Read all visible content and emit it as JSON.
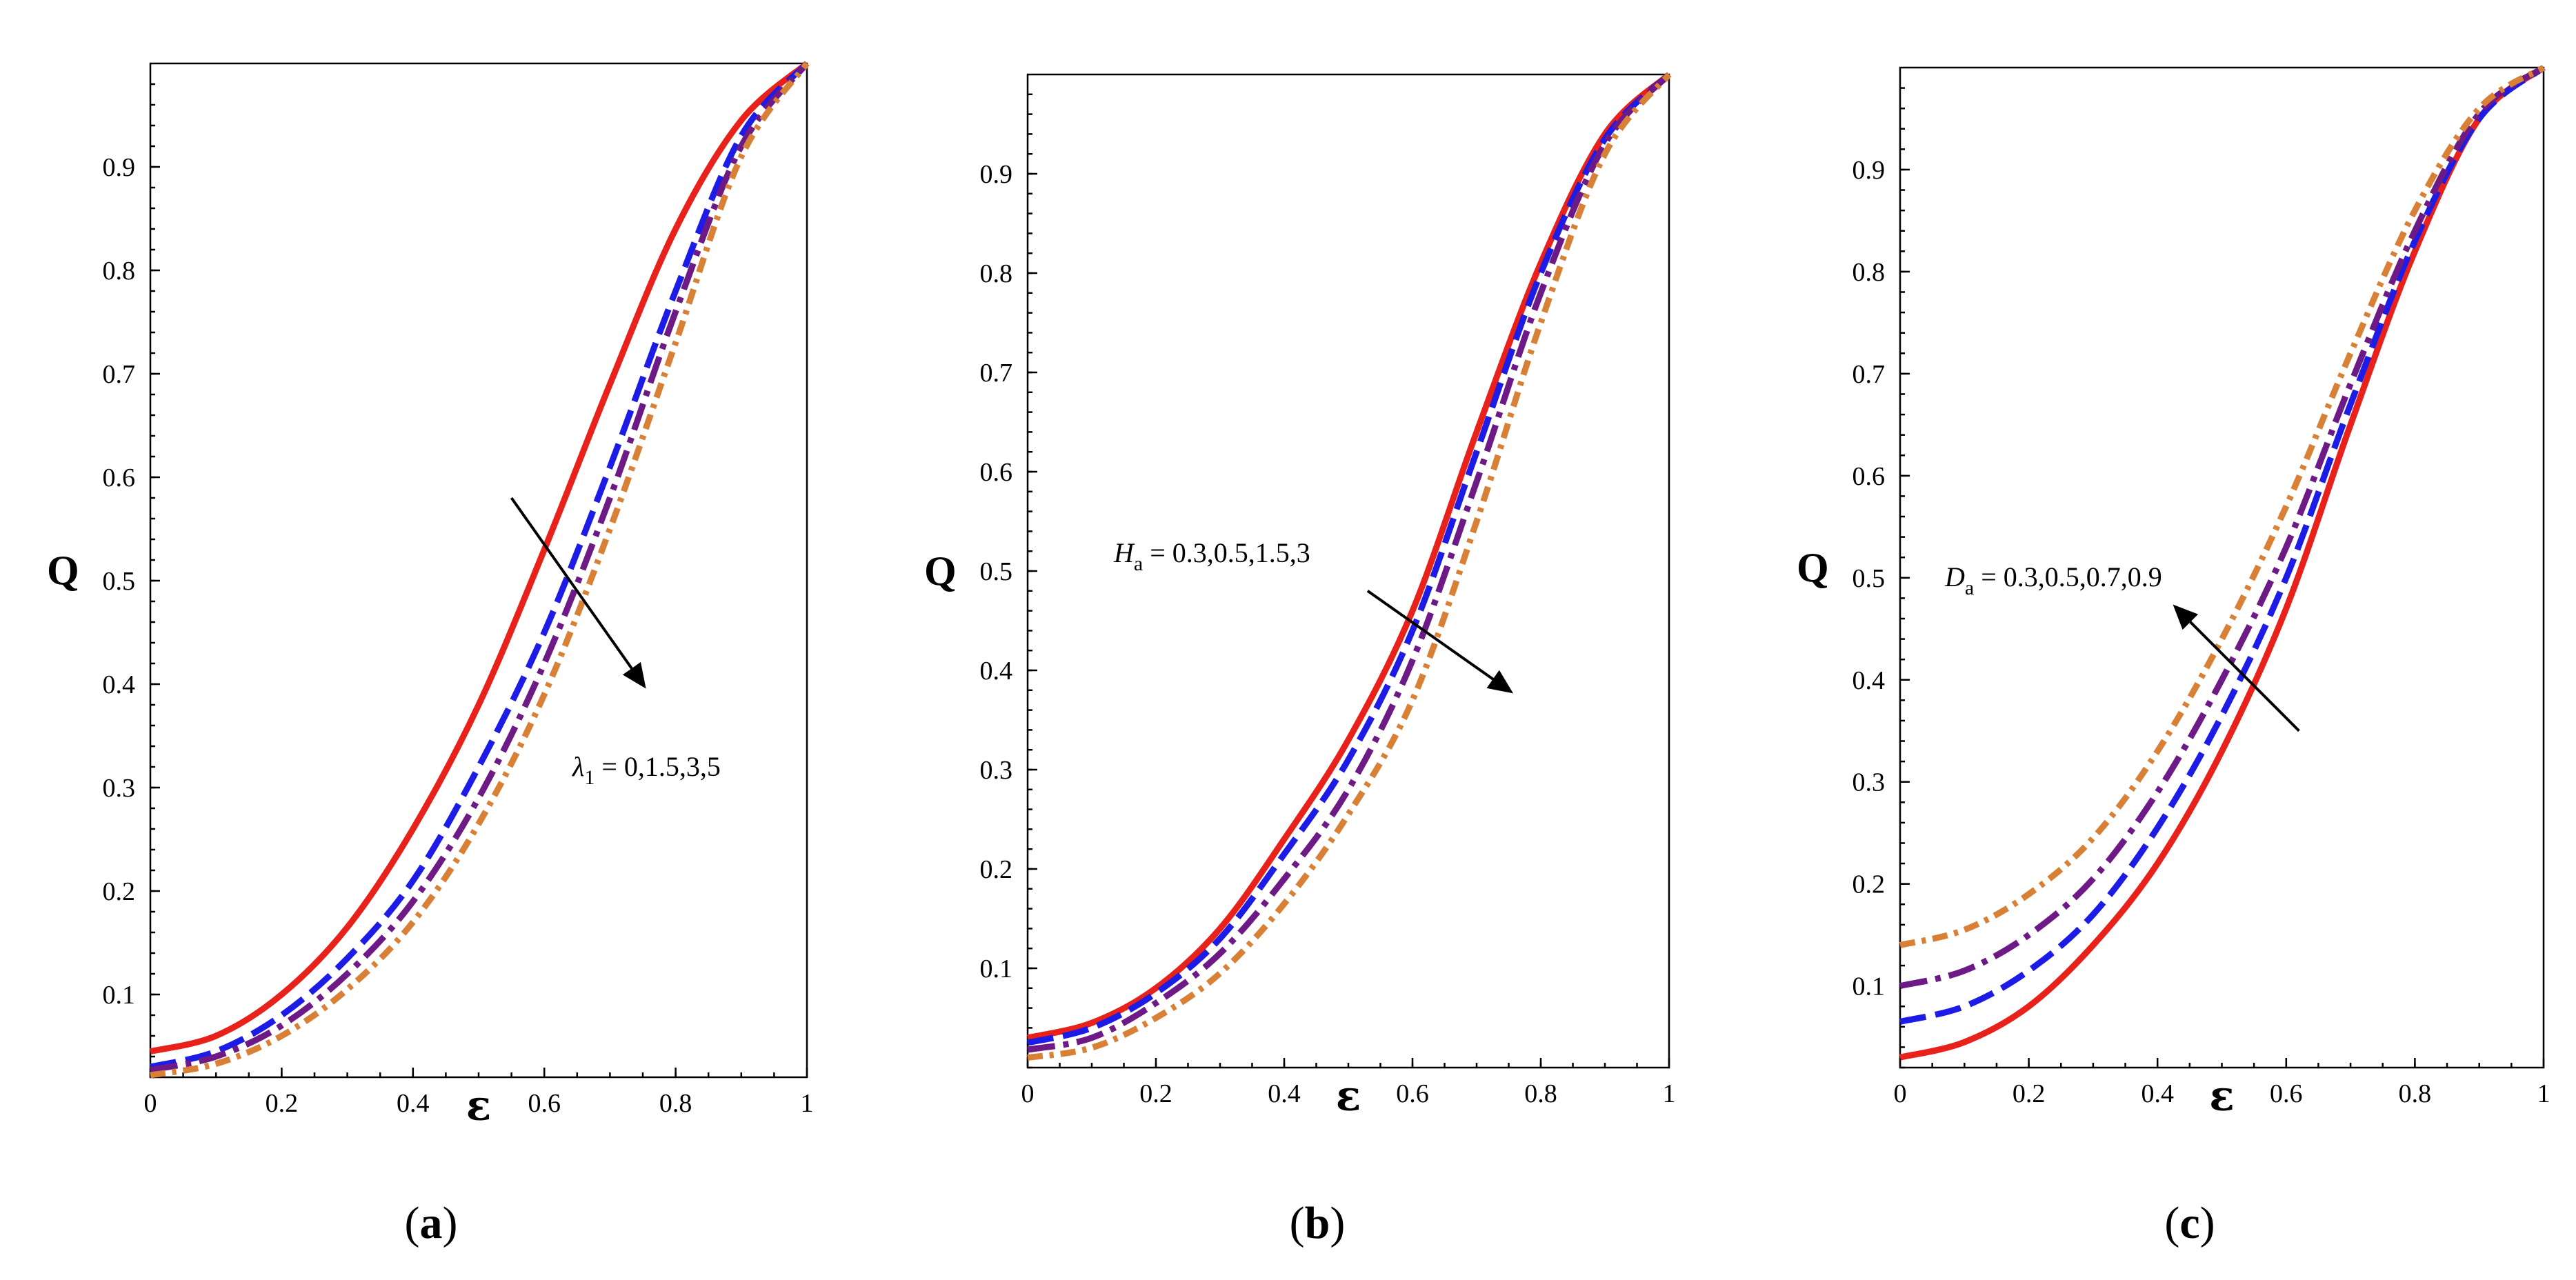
{
  "colors": {
    "red": "#e8211b",
    "blue": "#1c1ce6",
    "purple": "#6d1a86",
    "orange": "#d98037",
    "arrow": "#000000"
  },
  "chart_data": [
    {
      "type": "line",
      "panel": "a",
      "caption": {
        "open": "(",
        "letter": "a",
        "close": ")"
      },
      "xlabel": "ε",
      "ylabel": "Q",
      "xlim": [
        0,
        1
      ],
      "ylim": [
        0.02,
        1.0
      ],
      "xticks": [
        "0",
        "0.2",
        "0.4",
        "0.6",
        "0.8",
        "1"
      ],
      "yticks": [
        "0.1",
        "0.2",
        "0.3",
        "0.4",
        "0.5",
        "0.6",
        "0.7",
        "0.8",
        "0.9"
      ],
      "annotation": {
        "symbol": "λ",
        "sub": "1",
        "text": " = 0,1.5,3,5"
      },
      "arrow": {
        "from": [
          0.55,
          0.58
        ],
        "to": [
          0.75,
          0.4
        ],
        "direction": "decreasing"
      },
      "x": [
        0,
        0.1,
        0.2,
        0.3,
        0.4,
        0.5,
        0.6,
        0.7,
        0.8,
        0.9,
        1.0
      ],
      "series": [
        {
          "name": "λ1 = 0",
          "color": "red",
          "style": "solid",
          "values": [
            0.045,
            0.06,
            0.1,
            0.165,
            0.26,
            0.38,
            0.53,
            0.69,
            0.84,
            0.945,
            1.0
          ]
        },
        {
          "name": "λ1 = 1.5",
          "color": "blue",
          "style": "dash",
          "values": [
            0.03,
            0.045,
            0.08,
            0.135,
            0.21,
            0.32,
            0.45,
            0.61,
            0.78,
            0.93,
            1.0
          ]
        },
        {
          "name": "λ1 = 3",
          "color": "purple",
          "style": "dashdot",
          "values": [
            0.027,
            0.04,
            0.07,
            0.12,
            0.19,
            0.29,
            0.42,
            0.58,
            0.76,
            0.92,
            1.0
          ]
        },
        {
          "name": "λ1 = 5",
          "color": "orange",
          "style": "dashdot2",
          "values": [
            0.022,
            0.033,
            0.06,
            0.105,
            0.17,
            0.265,
            0.39,
            0.55,
            0.73,
            0.91,
            1.0
          ]
        }
      ]
    },
    {
      "type": "line",
      "panel": "b",
      "caption": {
        "open": "(",
        "letter": "b",
        "close": ")"
      },
      "xlabel": "ε",
      "ylabel": "Q",
      "xlim": [
        0,
        1
      ],
      "ylim": [
        0.0,
        1.0
      ],
      "xticks": [
        "0",
        "0.2",
        "0.4",
        "0.6",
        "0.8",
        "1"
      ],
      "yticks": [
        "0.1",
        "0.2",
        "0.3",
        "0.4",
        "0.5",
        "0.6",
        "0.7",
        "0.8",
        "0.9"
      ],
      "annotation": {
        "symbol": "H",
        "sub": "a",
        "text": " = 0.3,0.5,1.5,3"
      },
      "arrow": {
        "from": [
          0.53,
          0.48
        ],
        "to": [
          0.75,
          0.38
        ],
        "direction": "decreasing"
      },
      "x": [
        0,
        0.1,
        0.2,
        0.3,
        0.4,
        0.5,
        0.6,
        0.7,
        0.8,
        0.9,
        1.0
      ],
      "series": [
        {
          "name": "Ha = 0.3",
          "color": "red",
          "style": "solid",
          "values": [
            0.03,
            0.045,
            0.08,
            0.14,
            0.23,
            0.33,
            0.46,
            0.64,
            0.81,
            0.94,
            1.0
          ]
        },
        {
          "name": "Ha = 0.5",
          "color": "blue",
          "style": "dash",
          "values": [
            0.025,
            0.04,
            0.075,
            0.13,
            0.215,
            0.31,
            0.44,
            0.62,
            0.8,
            0.935,
            1.0
          ]
        },
        {
          "name": "Ha = 1.5",
          "color": "purple",
          "style": "dashdot",
          "values": [
            0.018,
            0.03,
            0.065,
            0.115,
            0.19,
            0.28,
            0.41,
            0.59,
            0.78,
            0.93,
            1.0
          ]
        },
        {
          "name": "Ha = 3",
          "color": "orange",
          "style": "dashdot2",
          "values": [
            0.01,
            0.02,
            0.05,
            0.095,
            0.165,
            0.255,
            0.37,
            0.55,
            0.75,
            0.92,
            1.0
          ]
        }
      ]
    },
    {
      "type": "line",
      "panel": "c",
      "caption": {
        "open": "(",
        "letter": "c",
        "close": ")"
      },
      "xlabel": "ε",
      "ylabel": "Q",
      "xlim": [
        0,
        1
      ],
      "ylim": [
        0.02,
        1.0
      ],
      "xticks": [
        "0",
        "0.2",
        "0.4",
        "0.6",
        "0.8",
        "1"
      ],
      "yticks": [
        "0.1",
        "0.2",
        "0.3",
        "0.4",
        "0.5",
        "0.6",
        "0.7",
        "0.8",
        "0.9"
      ],
      "annotation": {
        "symbol": "D",
        "sub": "a",
        "text": " = 0.3,0.5,0.7,0.9"
      },
      "arrow": {
        "from": [
          0.62,
          0.35
        ],
        "to": [
          0.43,
          0.47
        ],
        "direction": "increasing"
      },
      "x": [
        0,
        0.1,
        0.2,
        0.3,
        0.4,
        0.5,
        0.6,
        0.7,
        0.8,
        0.9,
        1.0
      ],
      "series": [
        {
          "name": "Da = 0.3",
          "color": "red",
          "style": "solid",
          "values": [
            0.03,
            0.045,
            0.08,
            0.14,
            0.22,
            0.33,
            0.47,
            0.65,
            0.82,
            0.95,
            1.0
          ]
        },
        {
          "name": "Da = 0.5",
          "color": "blue",
          "style": "dash",
          "values": [
            0.065,
            0.08,
            0.115,
            0.17,
            0.255,
            0.365,
            0.5,
            0.67,
            0.83,
            0.95,
            1.0
          ]
        },
        {
          "name": "Da = 0.7",
          "color": "purple",
          "style": "dashdot",
          "values": [
            0.1,
            0.115,
            0.15,
            0.205,
            0.29,
            0.4,
            0.53,
            0.69,
            0.84,
            0.955,
            1.0
          ]
        },
        {
          "name": "Da = 0.9",
          "color": "orange",
          "style": "dashdot2",
          "values": [
            0.14,
            0.155,
            0.19,
            0.245,
            0.33,
            0.44,
            0.57,
            0.72,
            0.86,
            0.96,
            1.0
          ]
        }
      ]
    }
  ]
}
